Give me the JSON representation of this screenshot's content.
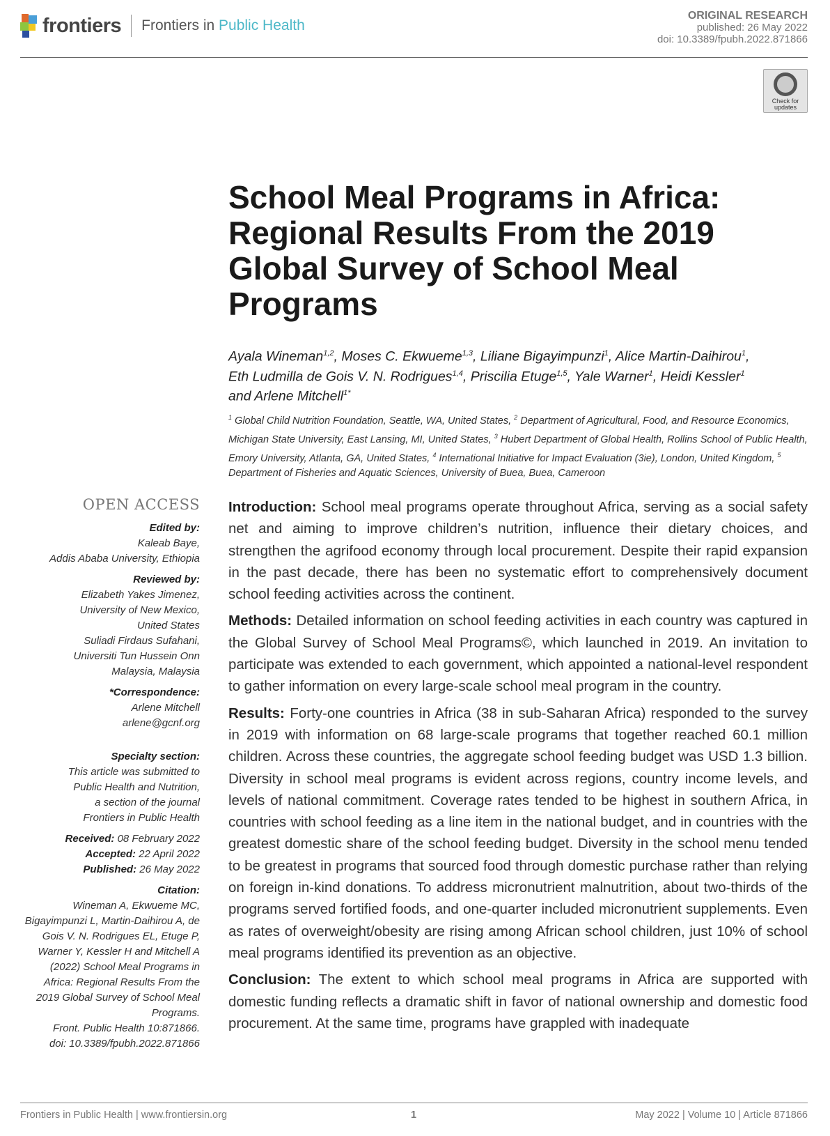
{
  "header": {
    "brand": "frontiers",
    "journal_prefix": "Frontiers in",
    "journal_name": "Public Health",
    "article_type": "ORIGINAL RESEARCH",
    "published": "published: 26 May 2022",
    "doi": "doi: 10.3389/fpubh.2022.871866",
    "check_updates": "Check for updates"
  },
  "title": "School Meal Programs in Africa: Regional Results From the 2019 Global Survey of School Meal Programs",
  "authors": [
    {
      "name": "Ayala Wineman",
      "sup": "1,2"
    },
    {
      "name": "Moses C. Ekwueme",
      "sup": "1,3"
    },
    {
      "name": "Liliane Bigayimpunzi",
      "sup": "1"
    },
    {
      "name": "Alice Martin-Daihirou",
      "sup": "1"
    },
    {
      "name": "Eth Ludmilla de Gois V. N. Rodrigues",
      "sup": "1,4"
    },
    {
      "name": "Priscilia Etuge",
      "sup": "1,5"
    },
    {
      "name": "Yale Warner",
      "sup": "1"
    },
    {
      "name": "Heidi Kessler",
      "sup": "1"
    },
    {
      "name": "and Arlene Mitchell",
      "sup": "1*"
    }
  ],
  "affiliations": [
    {
      "sup": "1",
      "text": "Global Child Nutrition Foundation, Seattle, WA, United States,"
    },
    {
      "sup": "2",
      "text": "Department of Agricultural, Food, and Resource Economics, Michigan State University, East Lansing, MI, United States,"
    },
    {
      "sup": "3",
      "text": "Hubert Department of Global Health, Rollins School of Public Health, Emory University, Atlanta, GA, United States,"
    },
    {
      "sup": "4",
      "text": "International Initiative for Impact Evaluation (3ie), London, United Kingdom,"
    },
    {
      "sup": "5",
      "text": "Department of Fisheries and Aquatic Sciences, University of Buea, Buea, Cameroon"
    }
  ],
  "sidebar": {
    "open_access": "OPEN ACCESS",
    "edited_label": "Edited by:",
    "edited": [
      "Kaleab Baye,",
      "Addis Ababa University, Ethiopia"
    ],
    "reviewed_label": "Reviewed by:",
    "reviewed": [
      "Elizabeth Yakes Jimenez,",
      "University of New Mexico,",
      "United States",
      "Suliadi Firdaus Sufahani,",
      "Universiti Tun Hussein Onn",
      "Malaysia, Malaysia"
    ],
    "corr_label": "*Correspondence:",
    "corr": [
      "Arlene Mitchell",
      "arlene@gcnf.org"
    ],
    "specialty_label": "Specialty section:",
    "specialty": [
      "This article was submitted to",
      "Public Health and Nutrition,",
      "a section of the journal",
      "Frontiers in Public Health"
    ],
    "received_label": "Received:",
    "received": "08 February 2022",
    "accepted_label": "Accepted:",
    "accepted": "22 April 2022",
    "published_label": "Published:",
    "published": "26 May 2022",
    "citation_label": "Citation:",
    "citation": [
      "Wineman A, Ekwueme MC,",
      "Bigayimpunzi L, Martin-Daihirou A, de",
      "Gois V. N. Rodrigues EL, Etuge P,",
      "Warner Y, Kessler H and Mitchell A",
      "(2022) School Meal Programs in",
      "Africa: Regional Results From the",
      "2019 Global Survey of School Meal",
      "Programs.",
      "Front. Public Health 10:871866.",
      "doi: 10.3389/fpubh.2022.871866"
    ]
  },
  "abstract": [
    {
      "label": "Introduction:",
      "text": "School meal programs operate throughout Africa, serving as a social safety net and aiming to improve children’s nutrition, influence their dietary choices, and strengthen the agrifood economy through local procurement. Despite their rapid expansion in the past decade, there has been no systematic effort to comprehensively document school feeding activities across the continent."
    },
    {
      "label": "Methods:",
      "text": "Detailed information on school feeding activities in each country was captured in the Global Survey of School Meal Programs©, which launched in 2019. An invitation to participate was extended to each government, which appointed a national-level respondent to gather information on every large-scale school meal program in the country."
    },
    {
      "label": "Results:",
      "text": "Forty-one countries in Africa (38 in sub-Saharan Africa) responded to the survey in 2019 with information on 68 large-scale programs that together reached 60.1 million children. Across these countries, the aggregate school feeding budget was USD 1.3 billion. Diversity in school meal programs is evident across regions, country income levels, and levels of national commitment. Coverage rates tended to be highest in southern Africa, in countries with school feeding as a line item in the national budget, and in countries with the greatest domestic share of the school feeding budget. Diversity in the school menu tended to be greatest in programs that sourced food through domestic purchase rather than relying on foreign in-kind donations. To address micronutrient malnutrition, about two-thirds of the programs served fortified foods, and one-quarter included micronutrient supplements. Even as rates of overweight/obesity are rising among African school children, just 10% of school meal programs identified its prevention as an objective."
    },
    {
      "label": "Conclusion:",
      "text": "The extent to which school meal programs in Africa are supported with domestic funding reflects a dramatic shift in favor of national ownership and domestic food procurement. At the same time, programs have grappled with inadequate"
    }
  ],
  "footer": {
    "left": "Frontiers in Public Health | www.frontiersin.org",
    "page": "1",
    "right": "May 2022 | Volume 10 | Article 871866"
  }
}
